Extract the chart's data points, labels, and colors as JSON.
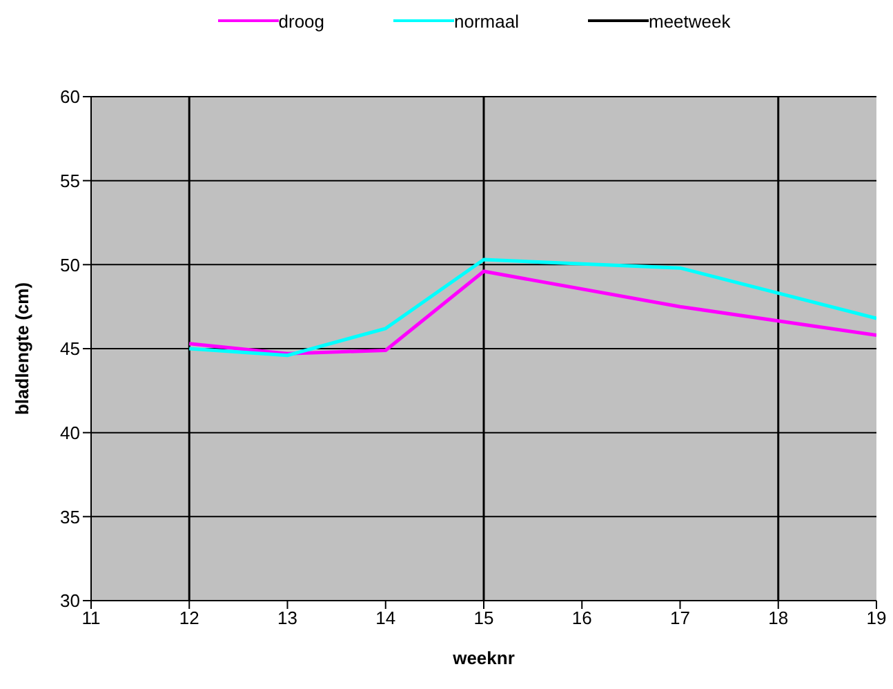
{
  "chart_data": {
    "type": "line",
    "xlabel": "weeknr",
    "ylabel": "bladlengte (cm)",
    "x": [
      12,
      13,
      14,
      15,
      17,
      19
    ],
    "series": [
      {
        "name": "droog",
        "color": "#ff00ff",
        "values": [
          45.3,
          44.7,
          44.9,
          49.6,
          47.5,
          45.8
        ]
      },
      {
        "name": "normaal",
        "color": "#00ffff",
        "values": [
          45.0,
          44.6,
          46.2,
          50.3,
          49.8,
          46.8
        ]
      }
    ],
    "xlim": [
      11,
      19
    ],
    "xticks": [
      11,
      12,
      13,
      14,
      15,
      16,
      17,
      18,
      19
    ],
    "ylim": [
      30,
      60
    ],
    "yticks": [
      30,
      35,
      40,
      45,
      50,
      55,
      60
    ],
    "ref_lines": [
      {
        "axis": "x",
        "value": 12,
        "label": "meetweek",
        "color": "#000000"
      },
      {
        "axis": "x",
        "value": 15,
        "color": "#000000"
      },
      {
        "axis": "x",
        "value": 18,
        "color": "#000000"
      }
    ],
    "grid": "y",
    "legend": "top",
    "marker": "none"
  }
}
